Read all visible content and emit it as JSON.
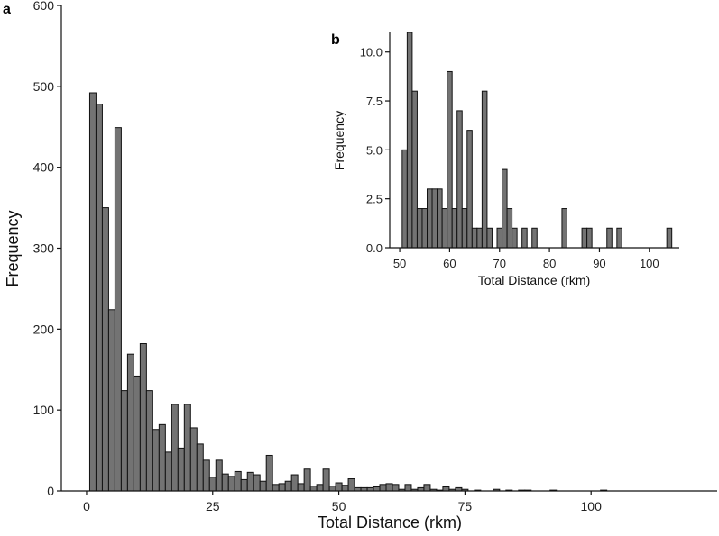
{
  "colors": {
    "bar_fill": "#737373",
    "bar_edge": "#111111",
    "axis": "#111111"
  },
  "chart_data": [
    {
      "panel": "a",
      "type": "bar",
      "title": "",
      "xlabel": "Total Distance (rkm)",
      "ylabel": "Frequency",
      "xlim": [
        -5,
        125
      ],
      "ylim": [
        0,
        600
      ],
      "xticks": [
        0,
        25,
        50,
        75,
        100
      ],
      "yticks": [
        0,
        100,
        200,
        300,
        400,
        500,
        600
      ],
      "bin_width": 1.25,
      "bins": [
        {
          "x": 1.25,
          "y": 492
        },
        {
          "x": 2.5,
          "y": 478
        },
        {
          "x": 3.75,
          "y": 350
        },
        {
          "x": 5.0,
          "y": 224
        },
        {
          "x": 6.25,
          "y": 449
        },
        {
          "x": 7.5,
          "y": 124
        },
        {
          "x": 8.75,
          "y": 169
        },
        {
          "x": 10.0,
          "y": 142
        },
        {
          "x": 11.25,
          "y": 182
        },
        {
          "x": 12.5,
          "y": 124
        },
        {
          "x": 13.75,
          "y": 76
        },
        {
          "x": 15.0,
          "y": 82
        },
        {
          "x": 16.25,
          "y": 48
        },
        {
          "x": 17.5,
          "y": 107
        },
        {
          "x": 18.75,
          "y": 53
        },
        {
          "x": 20.0,
          "y": 107
        },
        {
          "x": 21.25,
          "y": 78
        },
        {
          "x": 22.5,
          "y": 58
        },
        {
          "x": 23.75,
          "y": 38
        },
        {
          "x": 25.0,
          "y": 17
        },
        {
          "x": 26.25,
          "y": 38
        },
        {
          "x": 27.5,
          "y": 21
        },
        {
          "x": 28.75,
          "y": 18
        },
        {
          "x": 30.0,
          "y": 24
        },
        {
          "x": 31.25,
          "y": 14
        },
        {
          "x": 32.5,
          "y": 23
        },
        {
          "x": 33.75,
          "y": 20
        },
        {
          "x": 35.0,
          "y": 12
        },
        {
          "x": 36.25,
          "y": 44
        },
        {
          "x": 37.5,
          "y": 8
        },
        {
          "x": 38.75,
          "y": 9
        },
        {
          "x": 40.0,
          "y": 12
        },
        {
          "x": 41.25,
          "y": 20
        },
        {
          "x": 42.5,
          "y": 9
        },
        {
          "x": 43.75,
          "y": 27
        },
        {
          "x": 45.0,
          "y": 6
        },
        {
          "x": 46.25,
          "y": 8
        },
        {
          "x": 47.5,
          "y": 27
        },
        {
          "x": 48.75,
          "y": 6
        },
        {
          "x": 50.0,
          "y": 10
        },
        {
          "x": 51.25,
          "y": 7
        },
        {
          "x": 52.5,
          "y": 15
        },
        {
          "x": 53.75,
          "y": 4
        },
        {
          "x": 55.0,
          "y": 4
        },
        {
          "x": 56.25,
          "y": 4
        },
        {
          "x": 57.5,
          "y": 5
        },
        {
          "x": 58.75,
          "y": 8
        },
        {
          "x": 60.0,
          "y": 9
        },
        {
          "x": 61.25,
          "y": 8
        },
        {
          "x": 62.5,
          "y": 2
        },
        {
          "x": 63.75,
          "y": 8
        },
        {
          "x": 65.0,
          "y": 2
        },
        {
          "x": 66.25,
          "y": 4
        },
        {
          "x": 67.5,
          "y": 8
        },
        {
          "x": 68.75,
          "y": 2
        },
        {
          "x": 70.0,
          "y": 1
        },
        {
          "x": 71.25,
          "y": 5
        },
        {
          "x": 72.5,
          "y": 2
        },
        {
          "x": 73.75,
          "y": 4
        },
        {
          "x": 75.0,
          "y": 2
        },
        {
          "x": 77.5,
          "y": 1
        },
        {
          "x": 81.25,
          "y": 2
        },
        {
          "x": 83.75,
          "y": 1
        },
        {
          "x": 86.25,
          "y": 1
        },
        {
          "x": 87.5,
          "y": 1
        },
        {
          "x": 92.5,
          "y": 1
        },
        {
          "x": 102.5,
          "y": 1
        }
      ]
    },
    {
      "panel": "b",
      "type": "bar",
      "title": "",
      "xlabel": "Total Distance (rkm)",
      "ylabel": "Frequency",
      "xlim": [
        48,
        106
      ],
      "ylim": [
        0,
        11
      ],
      "xticks": [
        50,
        60,
        70,
        80,
        90,
        100
      ],
      "ytick_labels": [
        "0.0",
        "2.5",
        "5.0",
        "7.5",
        "10.0"
      ],
      "yticks": [
        0,
        2.5,
        5.0,
        7.5,
        10.0
      ],
      "bin_width": 1.0,
      "bins": [
        {
          "x": 51,
          "y": 5
        },
        {
          "x": 52,
          "y": 11
        },
        {
          "x": 53,
          "y": 8
        },
        {
          "x": 54,
          "y": 2
        },
        {
          "x": 55,
          "y": 2
        },
        {
          "x": 56,
          "y": 3
        },
        {
          "x": 57,
          "y": 3
        },
        {
          "x": 58,
          "y": 3
        },
        {
          "x": 59,
          "y": 2
        },
        {
          "x": 60,
          "y": 9
        },
        {
          "x": 61,
          "y": 2
        },
        {
          "x": 62,
          "y": 7
        },
        {
          "x": 63,
          "y": 2
        },
        {
          "x": 64,
          "y": 6
        },
        {
          "x": 65,
          "y": 1
        },
        {
          "x": 66,
          "y": 1
        },
        {
          "x": 67,
          "y": 8
        },
        {
          "x": 68,
          "y": 1
        },
        {
          "x": 70,
          "y": 1
        },
        {
          "x": 71,
          "y": 4
        },
        {
          "x": 72,
          "y": 2
        },
        {
          "x": 73,
          "y": 1
        },
        {
          "x": 75,
          "y": 1
        },
        {
          "x": 77,
          "y": 1
        },
        {
          "x": 83,
          "y": 2
        },
        {
          "x": 87,
          "y": 1
        },
        {
          "x": 88,
          "y": 1
        },
        {
          "x": 92,
          "y": 1
        },
        {
          "x": 94,
          "y": 1
        },
        {
          "x": 104,
          "y": 1
        }
      ]
    }
  ]
}
